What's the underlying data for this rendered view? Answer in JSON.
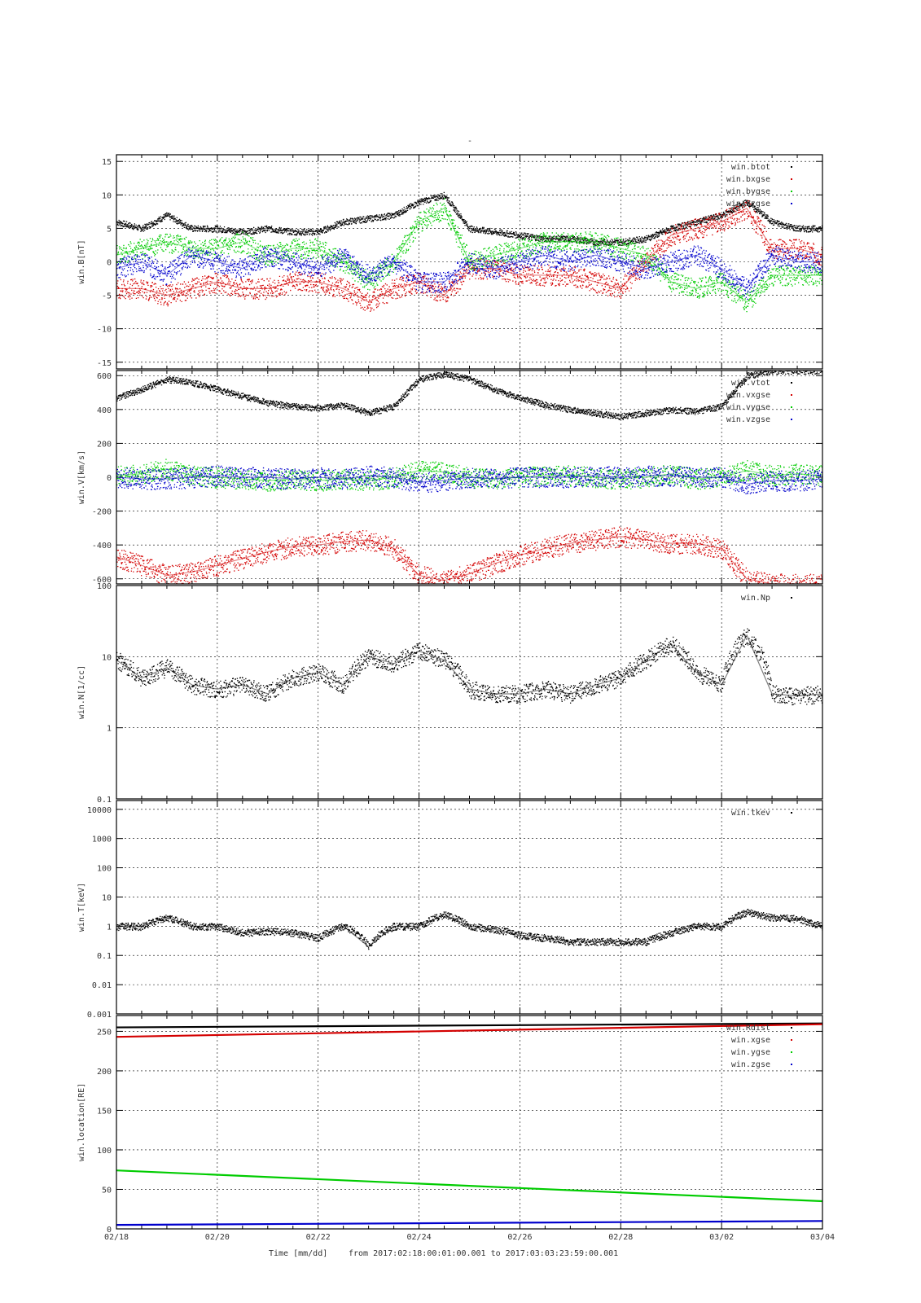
{
  "figure": {
    "title": "-",
    "time_axis_label": "Time [mm/dd]",
    "time_range_label": "from 2017:02:18:00:01:00.001  to  2017:03:03:23:59:00.001"
  },
  "colors": {
    "black": "#000000",
    "red": "#d40000",
    "green": "#00cc00",
    "blue": "#0000cc"
  },
  "chart_data": [
    {
      "type": "scatter",
      "ylabel": "win.B[nT]",
      "x_ticks": [
        "02/18",
        "02/20",
        "02/22",
        "02/24",
        "02/26",
        "02/28",
        "03/02",
        "03/04"
      ],
      "xlim_days": [
        0,
        14
      ],
      "ylim": [
        -16,
        16
      ],
      "yscale": "linear",
      "y_ticks": [
        -15,
        -10,
        -5,
        0,
        5,
        10,
        15
      ],
      "legend_placement": "top-right",
      "grid": true,
      "series": [
        {
          "name": "win.btot",
          "color": "black",
          "x": [
            0,
            0.5,
            1,
            1.5,
            2,
            2.5,
            3,
            3.5,
            4,
            4.5,
            5,
            5.5,
            6,
            6.5,
            7,
            7.5,
            8,
            8.5,
            9,
            9.5,
            10,
            10.5,
            11,
            11.5,
            12,
            12.5,
            13,
            13.5,
            14
          ],
          "y": [
            6,
            5,
            7,
            5,
            5,
            4.5,
            5,
            4.5,
            4.5,
            6,
            6.5,
            7,
            9,
            10,
            5,
            4.5,
            4,
            3.5,
            3.5,
            3,
            3,
            3.5,
            5,
            6,
            7,
            9,
            6,
            5,
            5
          ]
        },
        {
          "name": "win.bxgse",
          "color": "red",
          "x": [
            0,
            0.5,
            1,
            1.5,
            2,
            2.5,
            3,
            3.5,
            4,
            4.5,
            5,
            5.5,
            6,
            6.5,
            7,
            7.5,
            8,
            8.5,
            9,
            9.5,
            10,
            10.5,
            11,
            11.5,
            12,
            12.5,
            13,
            13.5,
            14
          ],
          "y": [
            -4,
            -4,
            -5,
            -4,
            -3,
            -4,
            -4,
            -3,
            -3,
            -4,
            -6,
            -4,
            -3,
            -5,
            -1,
            -1,
            -2,
            -2,
            -2,
            -3,
            -4,
            0,
            4,
            5,
            6,
            8,
            2,
            2,
            1
          ]
        },
        {
          "name": "win.bygse",
          "color": "green",
          "x": [
            0,
            0.5,
            1,
            1.5,
            2,
            2.5,
            3,
            3.5,
            4,
            4.5,
            5,
            5.5,
            6,
            6.5,
            7,
            7.5,
            8,
            8.5,
            9,
            9.5,
            10,
            10.5,
            11,
            11.5,
            12,
            12.5,
            13,
            13.5,
            14
          ],
          "y": [
            1,
            2,
            3,
            2,
            2,
            3,
            1,
            2,
            2,
            0,
            -3,
            0,
            6,
            8,
            0,
            1,
            2,
            3,
            3,
            3,
            2,
            1,
            -3,
            -4,
            -3,
            -6,
            -2,
            -2,
            -2
          ]
        },
        {
          "name": "win.bzgse",
          "color": "blue",
          "x": [
            0,
            0.5,
            1,
            1.5,
            2,
            2.5,
            3,
            3.5,
            4,
            4.5,
            5,
            5.5,
            6,
            6.5,
            7,
            7.5,
            8,
            8.5,
            9,
            9.5,
            10,
            10.5,
            11,
            11.5,
            12,
            12.5,
            13,
            13.5,
            14
          ],
          "y": [
            -1,
            0,
            -2,
            1,
            0,
            -1,
            1,
            0,
            -1,
            1,
            -2,
            0,
            -3,
            -3,
            0,
            -1,
            0,
            1,
            0,
            1,
            0,
            -1,
            0,
            1,
            -1,
            -4,
            1,
            0,
            0
          ]
        }
      ]
    },
    {
      "type": "scatter",
      "ylabel": "win.V[km/s]",
      "x_ticks": [
        "02/18",
        "02/20",
        "02/22",
        "02/24",
        "02/26",
        "02/28",
        "03/02",
        "03/04"
      ],
      "xlim_days": [
        0,
        14
      ],
      "ylim": [
        -630,
        630
      ],
      "yscale": "linear",
      "y_ticks": [
        -600,
        -400,
        -200,
        0,
        200,
        400,
        600
      ],
      "legend_placement": "top-right",
      "grid": true,
      "series": [
        {
          "name": "win.vtot",
          "color": "black",
          "x": [
            0,
            0.5,
            1,
            1.5,
            2,
            2.5,
            3,
            3.5,
            4,
            4.5,
            5,
            5.5,
            6,
            6.5,
            7,
            7.5,
            8,
            8.5,
            9,
            9.5,
            10,
            10.5,
            11,
            11.5,
            12,
            12.5,
            13,
            13.5,
            14
          ],
          "y": [
            470,
            520,
            580,
            560,
            520,
            480,
            440,
            420,
            410,
            430,
            380,
            420,
            580,
            610,
            580,
            520,
            470,
            430,
            400,
            380,
            360,
            380,
            400,
            390,
            420,
            600,
            630,
            630,
            630
          ]
        },
        {
          "name": "win.vxgse",
          "color": "red",
          "x": [
            0,
            0.5,
            1,
            1.5,
            2,
            2.5,
            3,
            3.5,
            4,
            4.5,
            5,
            5.5,
            6,
            6.5,
            7,
            7.5,
            8,
            8.5,
            9,
            9.5,
            10,
            10.5,
            11,
            11.5,
            12,
            12.5,
            13,
            13.5,
            14
          ],
          "y": [
            -470,
            -520,
            -580,
            -560,
            -520,
            -480,
            -440,
            -410,
            -400,
            -380,
            -370,
            -420,
            -580,
            -610,
            -570,
            -510,
            -460,
            -420,
            -390,
            -370,
            -350,
            -370,
            -390,
            -390,
            -420,
            -600,
            -630,
            -630,
            -630
          ]
        },
        {
          "name": "win.vygse",
          "color": "green",
          "x": [
            0,
            0.5,
            1,
            1.5,
            2,
            2.5,
            3,
            3.5,
            4,
            4.5,
            5,
            5.5,
            6,
            6.5,
            7,
            7.5,
            8,
            8.5,
            9,
            9.5,
            10,
            10.5,
            11,
            11.5,
            12,
            12.5,
            13,
            13.5,
            14
          ],
          "y": [
            10,
            20,
            50,
            10,
            0,
            -10,
            -20,
            -10,
            -20,
            -10,
            -20,
            0,
            40,
            30,
            0,
            -10,
            0,
            10,
            10,
            0,
            -10,
            0,
            20,
            -10,
            0,
            40,
            10,
            20,
            10
          ]
        },
        {
          "name": "win.vzgse",
          "color": "blue",
          "x": [
            0,
            0.5,
            1,
            1.5,
            2,
            2.5,
            3,
            3.5,
            4,
            4.5,
            5,
            5.5,
            6,
            6.5,
            7,
            7.5,
            8,
            8.5,
            9,
            9.5,
            10,
            10.5,
            11,
            11.5,
            12,
            12.5,
            13,
            13.5,
            14
          ],
          "y": [
            0,
            -10,
            -10,
            0,
            10,
            0,
            0,
            -10,
            0,
            -10,
            10,
            0,
            -30,
            -20,
            0,
            -10,
            0,
            0,
            0,
            10,
            0,
            10,
            10,
            0,
            0,
            -40,
            -20,
            -20,
            -10
          ]
        }
      ]
    },
    {
      "type": "scatter",
      "ylabel": "win.N[1/cc]",
      "x_ticks": [
        "02/18",
        "02/20",
        "02/22",
        "02/24",
        "02/26",
        "02/28",
        "03/02",
        "03/04"
      ],
      "xlim_days": [
        0,
        14
      ],
      "ylim": [
        0.1,
        100
      ],
      "yscale": "log",
      "y_ticks": [
        0.1,
        1,
        10,
        100
      ],
      "legend_placement": "top-right",
      "grid": true,
      "series": [
        {
          "name": "win.Np",
          "color": "black",
          "x": [
            0,
            0.5,
            1,
            1.5,
            2,
            2.5,
            3,
            3.5,
            4,
            4.5,
            5,
            5.5,
            6,
            6.5,
            7,
            7.5,
            8,
            8.5,
            9,
            9.5,
            10,
            10.5,
            11,
            11.5,
            12,
            12.5,
            13,
            13.5,
            14
          ],
          "y": [
            9,
            5,
            7,
            4,
            3.5,
            4,
            3,
            5,
            6,
            4,
            10,
            8,
            12,
            9,
            3.5,
            3,
            3,
            3.5,
            3,
            4,
            5,
            9,
            15,
            6,
            4,
            20,
            3,
            2.8,
            3
          ]
        }
      ]
    },
    {
      "type": "scatter",
      "ylabel": "win.T[keV]",
      "x_ticks": [
        "02/18",
        "02/20",
        "02/22",
        "02/24",
        "02/26",
        "02/28",
        "03/02",
        "03/04"
      ],
      "xlim_days": [
        0,
        14
      ],
      "ylim": [
        0.001,
        20000
      ],
      "yscale": "log",
      "y_ticks": [
        0.001,
        0.01,
        0.1,
        1,
        10,
        100,
        1000,
        10000
      ],
      "y_tick_labels": [
        "0.001",
        "0.01",
        "0.1",
        "1",
        "10",
        "100",
        "1000",
        "10000"
      ],
      "legend_placement": "top-right",
      "grid": true,
      "series": [
        {
          "name": "win.tkev",
          "color": "black",
          "x": [
            0,
            0.5,
            1,
            1.5,
            2,
            2.5,
            3,
            3.5,
            4,
            4.5,
            5,
            5.5,
            6,
            6.5,
            7,
            7.5,
            8,
            8.5,
            9,
            9.5,
            10,
            10.5,
            11,
            11.5,
            12,
            12.5,
            13,
            13.5,
            14
          ],
          "y": [
            1,
            1,
            2,
            1,
            1,
            0.6,
            0.7,
            0.6,
            0.4,
            1,
            0.2,
            1,
            1,
            2.5,
            1,
            0.8,
            0.5,
            0.4,
            0.3,
            0.3,
            0.3,
            0.3,
            0.6,
            1,
            1,
            3,
            2,
            1.8,
            1
          ]
        }
      ]
    },
    {
      "type": "line",
      "ylabel": "win.location[RE]",
      "x_ticks": [
        "02/18",
        "02/20",
        "02/22",
        "02/24",
        "02/26",
        "02/28",
        "03/02",
        "03/04"
      ],
      "xlim_days": [
        0,
        14
      ],
      "ylim": [
        0,
        270
      ],
      "yscale": "linear",
      "y_ticks": [
        0,
        50,
        100,
        150,
        200,
        250
      ],
      "legend_placement": "top-right",
      "grid": true,
      "series": [
        {
          "name": "win.Rdist",
          "color": "black",
          "x": [
            0,
            14
          ],
          "y": [
            255,
            260
          ]
        },
        {
          "name": "win.xgse",
          "color": "red",
          "x": [
            0,
            14
          ],
          "y": [
            243,
            259
          ]
        },
        {
          "name": "win.ygse",
          "color": "green",
          "x": [
            0,
            14
          ],
          "y": [
            74,
            35
          ]
        },
        {
          "name": "win.zgse",
          "color": "blue",
          "x": [
            0,
            14
          ],
          "y": [
            5,
            10
          ]
        }
      ]
    }
  ]
}
